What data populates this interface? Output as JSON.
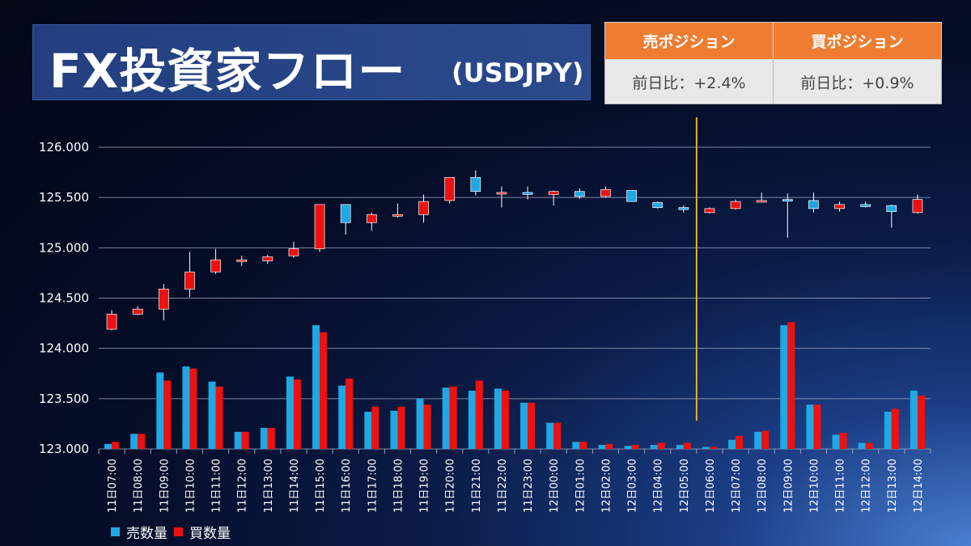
{
  "title": {
    "main": "FX投資家フロー",
    "sub": "(USDJPY)"
  },
  "position_table": {
    "headers": [
      "売ポジション",
      "買ポジション"
    ],
    "values": [
      "前日比：+2.4%",
      "前日比：+0.9%"
    ]
  },
  "colors": {
    "sell": "#1fa8e3",
    "buy": "#ee1111",
    "divider": "#e6b422",
    "grid": "#9aa4c0",
    "text": "#ffffff"
  },
  "chart_data": {
    "type": "candlestick+bar",
    "ylim": [
      123.0,
      126.0
    ],
    "yticks": [
      "123.000",
      "123.500",
      "124.000",
      "124.500",
      "125.000",
      "125.500",
      "126.000"
    ],
    "categories": [
      "11日07:00",
      "11日08:00",
      "11日09:00",
      "11日10:00",
      "11日11:00",
      "11日12:00",
      "11日13:00",
      "11日14:00",
      "11日15:00",
      "11日16:00",
      "11日17:00",
      "11日18:00",
      "11日19:00",
      "11日20:00",
      "11日21:00",
      "11日22:00",
      "11日23:00",
      "12日00:00",
      "12日01:00",
      "12日02:00",
      "12日03:00",
      "12日04:00",
      "12日05:00",
      "12日06:00",
      "12日07:00",
      "12日08:00",
      "12日09:00",
      "12日10:00",
      "12日11:00",
      "12日12:00",
      "12日13:00",
      "12日14:00"
    ],
    "candles": [
      {
        "o": 124.19,
        "h": 124.38,
        "l": 124.18,
        "c": 124.34
      },
      {
        "o": 124.34,
        "h": 124.42,
        "l": 124.33,
        "c": 124.39
      },
      {
        "o": 124.39,
        "h": 124.64,
        "l": 124.28,
        "c": 124.59
      },
      {
        "o": 124.59,
        "h": 124.96,
        "l": 124.51,
        "c": 124.76
      },
      {
        "o": 124.76,
        "h": 124.99,
        "l": 124.74,
        "c": 124.88
      },
      {
        "o": 124.87,
        "h": 124.92,
        "l": 124.82,
        "c": 124.88
      },
      {
        "o": 124.87,
        "h": 124.93,
        "l": 124.84,
        "c": 124.91
      },
      {
        "o": 124.92,
        "h": 125.06,
        "l": 124.9,
        "c": 124.99
      },
      {
        "o": 124.99,
        "h": 125.43,
        "l": 124.96,
        "c": 125.43
      },
      {
        "o": 125.43,
        "h": 125.43,
        "l": 125.13,
        "c": 125.25
      },
      {
        "o": 125.25,
        "h": 125.35,
        "l": 125.17,
        "c": 125.33
      },
      {
        "o": 125.32,
        "h": 125.44,
        "l": 125.3,
        "c": 125.33
      },
      {
        "o": 125.33,
        "h": 125.53,
        "l": 125.25,
        "c": 125.46
      },
      {
        "o": 125.47,
        "h": 125.7,
        "l": 125.44,
        "c": 125.7
      },
      {
        "o": 125.7,
        "h": 125.77,
        "l": 125.52,
        "c": 125.56
      },
      {
        "o": 125.55,
        "h": 125.61,
        "l": 125.4,
        "c": 125.55
      },
      {
        "o": 125.55,
        "h": 125.61,
        "l": 125.48,
        "c": 125.53
      },
      {
        "o": 125.53,
        "h": 125.57,
        "l": 125.42,
        "c": 125.56
      },
      {
        "o": 125.56,
        "h": 125.59,
        "l": 125.49,
        "c": 125.51
      },
      {
        "o": 125.51,
        "h": 125.61,
        "l": 125.5,
        "c": 125.58
      },
      {
        "o": 125.57,
        "h": 125.57,
        "l": 125.46,
        "c": 125.46
      },
      {
        "o": 125.45,
        "h": 125.46,
        "l": 125.39,
        "c": 125.4
      },
      {
        "o": 125.4,
        "h": 125.42,
        "l": 125.35,
        "c": 125.38
      },
      {
        "o": 125.35,
        "h": 125.4,
        "l": 125.34,
        "c": 125.39
      },
      {
        "o": 125.39,
        "h": 125.48,
        "l": 125.38,
        "c": 125.46
      },
      {
        "o": 125.46,
        "h": 125.55,
        "l": 125.45,
        "c": 125.47
      },
      {
        "o": 125.48,
        "h": 125.54,
        "l": 125.1,
        "c": 125.47
      },
      {
        "o": 125.47,
        "h": 125.55,
        "l": 125.35,
        "c": 125.39
      },
      {
        "o": 125.39,
        "h": 125.46,
        "l": 125.36,
        "c": 125.43
      },
      {
        "o": 125.43,
        "h": 125.46,
        "l": 125.4,
        "c": 125.41
      },
      {
        "o": 125.42,
        "h": 125.43,
        "l": 125.2,
        "c": 125.36
      },
      {
        "o": 125.35,
        "h": 125.53,
        "l": 125.34,
        "c": 125.48
      }
    ],
    "series": [
      {
        "name": "売数量",
        "values": [
          123.05,
          123.15,
          123.76,
          123.82,
          123.67,
          123.17,
          123.21,
          123.72,
          124.23,
          123.63,
          123.37,
          123.38,
          123.5,
          123.61,
          123.58,
          123.6,
          123.46,
          123.26,
          123.07,
          123.04,
          123.03,
          123.04,
          123.04,
          123.02,
          123.09,
          123.17,
          124.23,
          123.44,
          123.14,
          123.06,
          123.37,
          123.58
        ]
      },
      {
        "name": "買数量",
        "values": [
          123.07,
          123.15,
          123.68,
          123.8,
          123.62,
          123.17,
          123.21,
          123.69,
          124.16,
          123.7,
          123.42,
          123.42,
          123.44,
          123.62,
          123.68,
          123.58,
          123.46,
          123.26,
          123.07,
          123.05,
          123.04,
          123.06,
          123.06,
          123.02,
          123.13,
          123.18,
          124.26,
          123.44,
          123.16,
          123.06,
          123.4,
          123.53
        ]
      }
    ],
    "divider_after_category": "12日05:00",
    "legend": [
      "売数量",
      "買数量"
    ]
  }
}
